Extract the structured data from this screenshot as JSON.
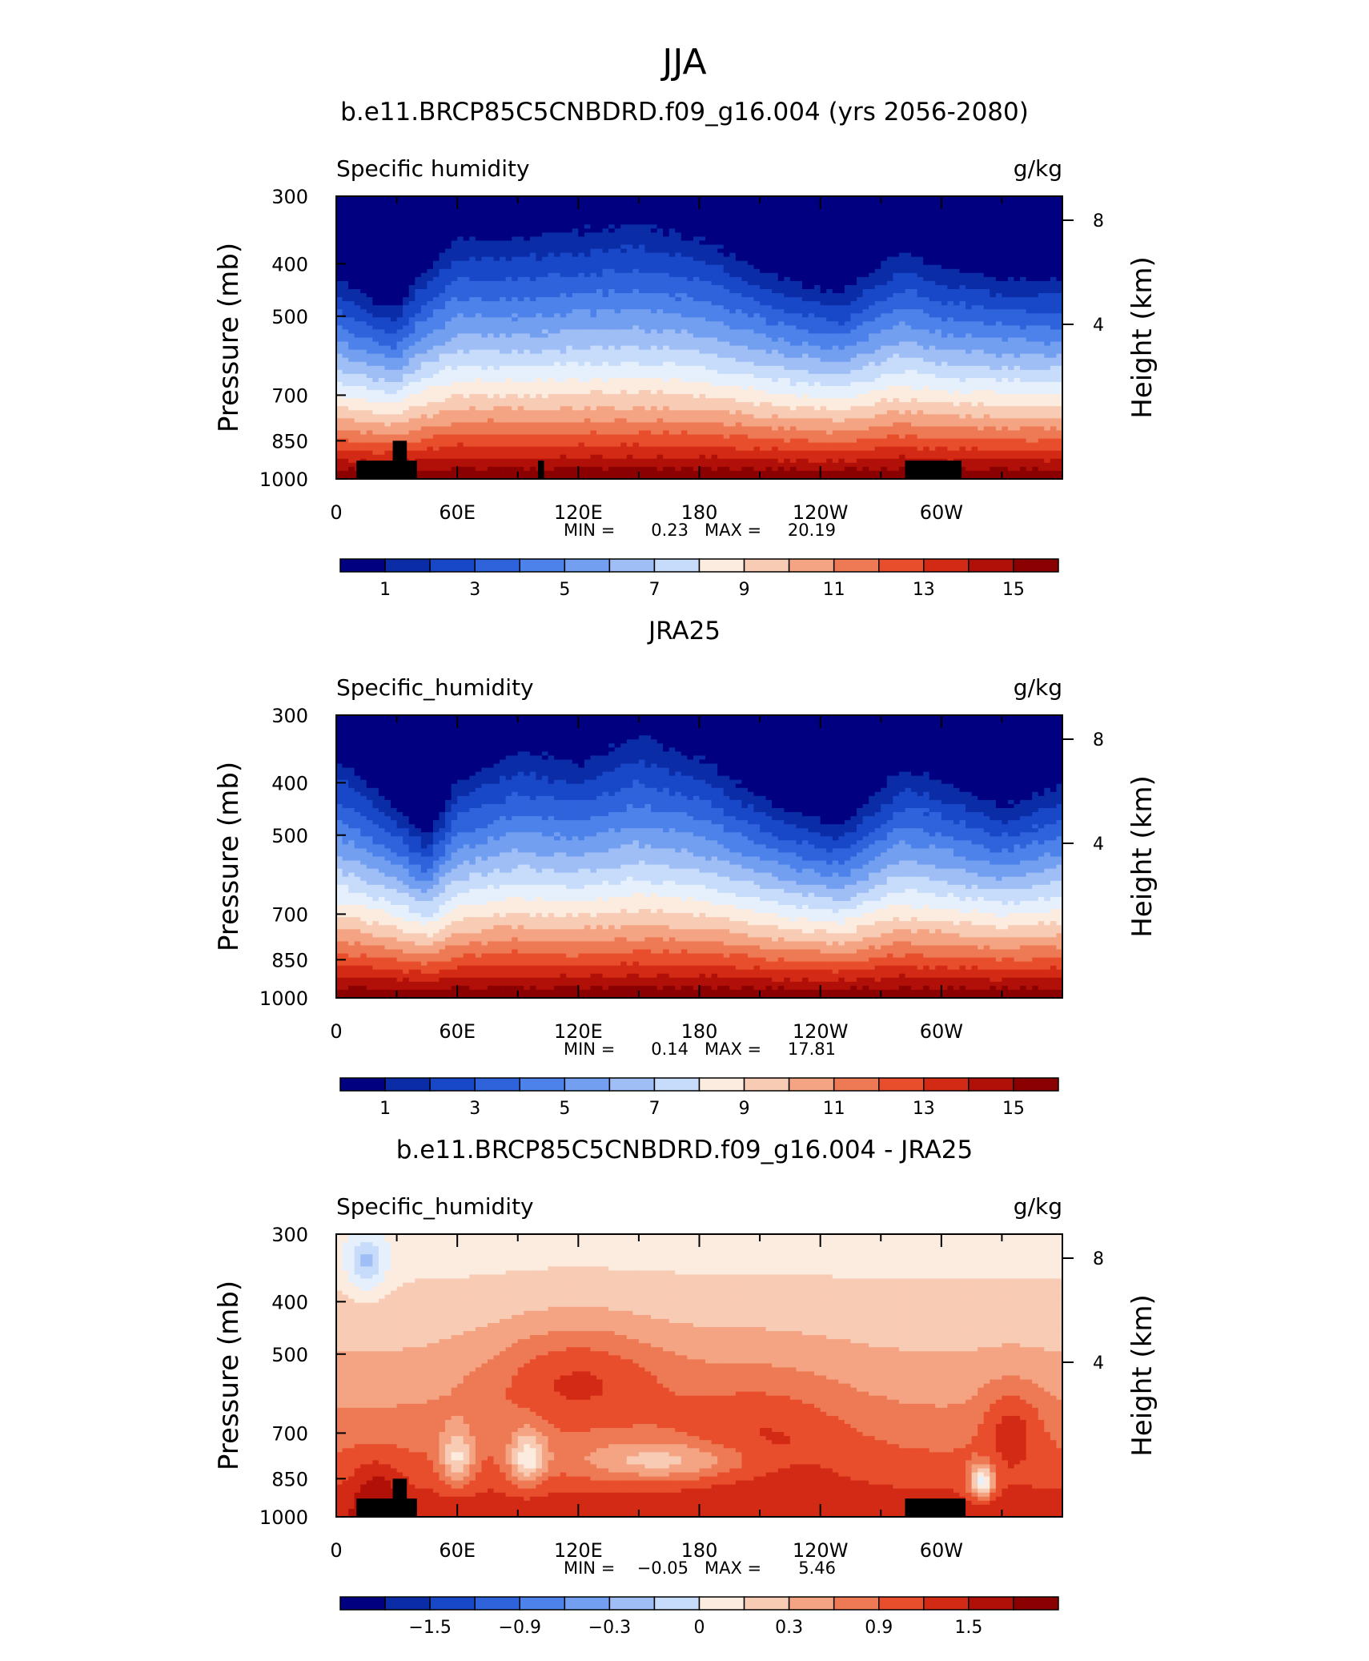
{
  "page_title": "JJA",
  "colors": {
    "palette": [
      "#000080",
      "#0a2ca6",
      "#1848c8",
      "#2e63dc",
      "#4c82ea",
      "#739ff0",
      "#9fbef6",
      "#c6dcfa",
      "#e6f0fc",
      "#fcece0",
      "#f8cbb4",
      "#f4a482",
      "#ee7a55",
      "#e84e2c",
      "#d22a14",
      "#b01008",
      "#8b0000"
    ],
    "land": "#000000"
  },
  "chart_data": [
    {
      "type": "heatmap",
      "title": "b.e11.BRCP85C5CNBDRD.f09_g16.004 (yrs 2056-2080)",
      "variable_label": "Specific humidity",
      "units": "g/kg",
      "ylabel": "Pressure (mb)",
      "ylabel_right": "Height (km)",
      "y_ticks": [
        "300",
        "400",
        "500",
        "700",
        "850",
        "1000"
      ],
      "y_right_ticks": [
        "8",
        "4"
      ],
      "x_ticks": [
        "0",
        "60E",
        "120E",
        "180",
        "120W",
        "60W"
      ],
      "min_label": "MIN =",
      "min_value": "0.23",
      "max_label": "MAX =",
      "max_value": "20.19",
      "colorbar_labels": [
        "1",
        "3",
        "5",
        "7",
        "9",
        "11",
        "13",
        "15"
      ],
      "profile": {
        "lon": [
          0,
          20,
          30,
          40,
          60,
          90,
          120,
          150,
          180,
          220,
          250,
          280,
          300,
          330,
          360
        ],
        "p_ref": [
          400,
          450,
          460,
          400,
          330,
          330,
          320,
          310,
          330,
          400,
          430,
          350,
          380,
          400,
          405
        ]
      },
      "land_blocks": [
        {
          "lon": [
            10,
            40
          ],
          "p_top": 925
        },
        {
          "lon": [
            28,
            35
          ],
          "p_top": 850
        },
        {
          "lon": [
            100,
            103
          ],
          "p_top": 925
        },
        {
          "lon": [
            282,
            310
          ],
          "p_top": 925
        }
      ]
    },
    {
      "type": "heatmap",
      "title": "JRA25",
      "variable_label": "Specific_humidity",
      "units": "g/kg",
      "ylabel": "Pressure (mb)",
      "ylabel_right": "Height (km)",
      "y_ticks": [
        "300",
        "400",
        "500",
        "700",
        "850",
        "1000"
      ],
      "y_right_ticks": [
        "8",
        "4"
      ],
      "x_ticks": [
        "0",
        "60E",
        "120E",
        "180",
        "120W",
        "60W"
      ],
      "min_label": "MIN =",
      "min_value": "0.14",
      "max_label": "MAX =",
      "max_value": "17.81",
      "colorbar_labels": [
        "1",
        "3",
        "5",
        "7",
        "9",
        "11",
        "13",
        "15"
      ],
      "profile": {
        "lon": [
          0,
          30,
          45,
          60,
          90,
          120,
          150,
          180,
          220,
          250,
          280,
          300,
          330,
          360
        ],
        "p_ref": [
          330,
          420,
          480,
          370,
          320,
          340,
          300,
          330,
          420,
          460,
          350,
          370,
          420,
          380
        ]
      },
      "land_blocks": []
    },
    {
      "type": "heatmap",
      "title": "b.e11.BRCP85C5CNBDRD.f09_g16.004 - JRA25",
      "variable_label": "Specific_humidity",
      "units": "g/kg",
      "ylabel": "Pressure (mb)",
      "ylabel_right": "Height (km)",
      "y_ticks": [
        "300",
        "400",
        "500",
        "700",
        "850",
        "1000"
      ],
      "y_right_ticks": [
        "8",
        "4"
      ],
      "x_ticks": [
        "0",
        "60E",
        "120E",
        "180",
        "120W",
        "60W"
      ],
      "min_label": "MIN =",
      "min_value": "−0.05",
      "max_label": "MAX =",
      "max_value": "5.46",
      "colorbar_labels": [
        "−1.5",
        "−0.9",
        "−0.3",
        "0",
        "0.3",
        "0.9",
        "1.5"
      ],
      "land_blocks": [
        {
          "lon": [
            10,
            40
          ],
          "p_top": 925
        },
        {
          "lon": [
            28,
            35
          ],
          "p_top": 850
        },
        {
          "lon": [
            282,
            312
          ],
          "p_top": 925
        }
      ]
    }
  ]
}
